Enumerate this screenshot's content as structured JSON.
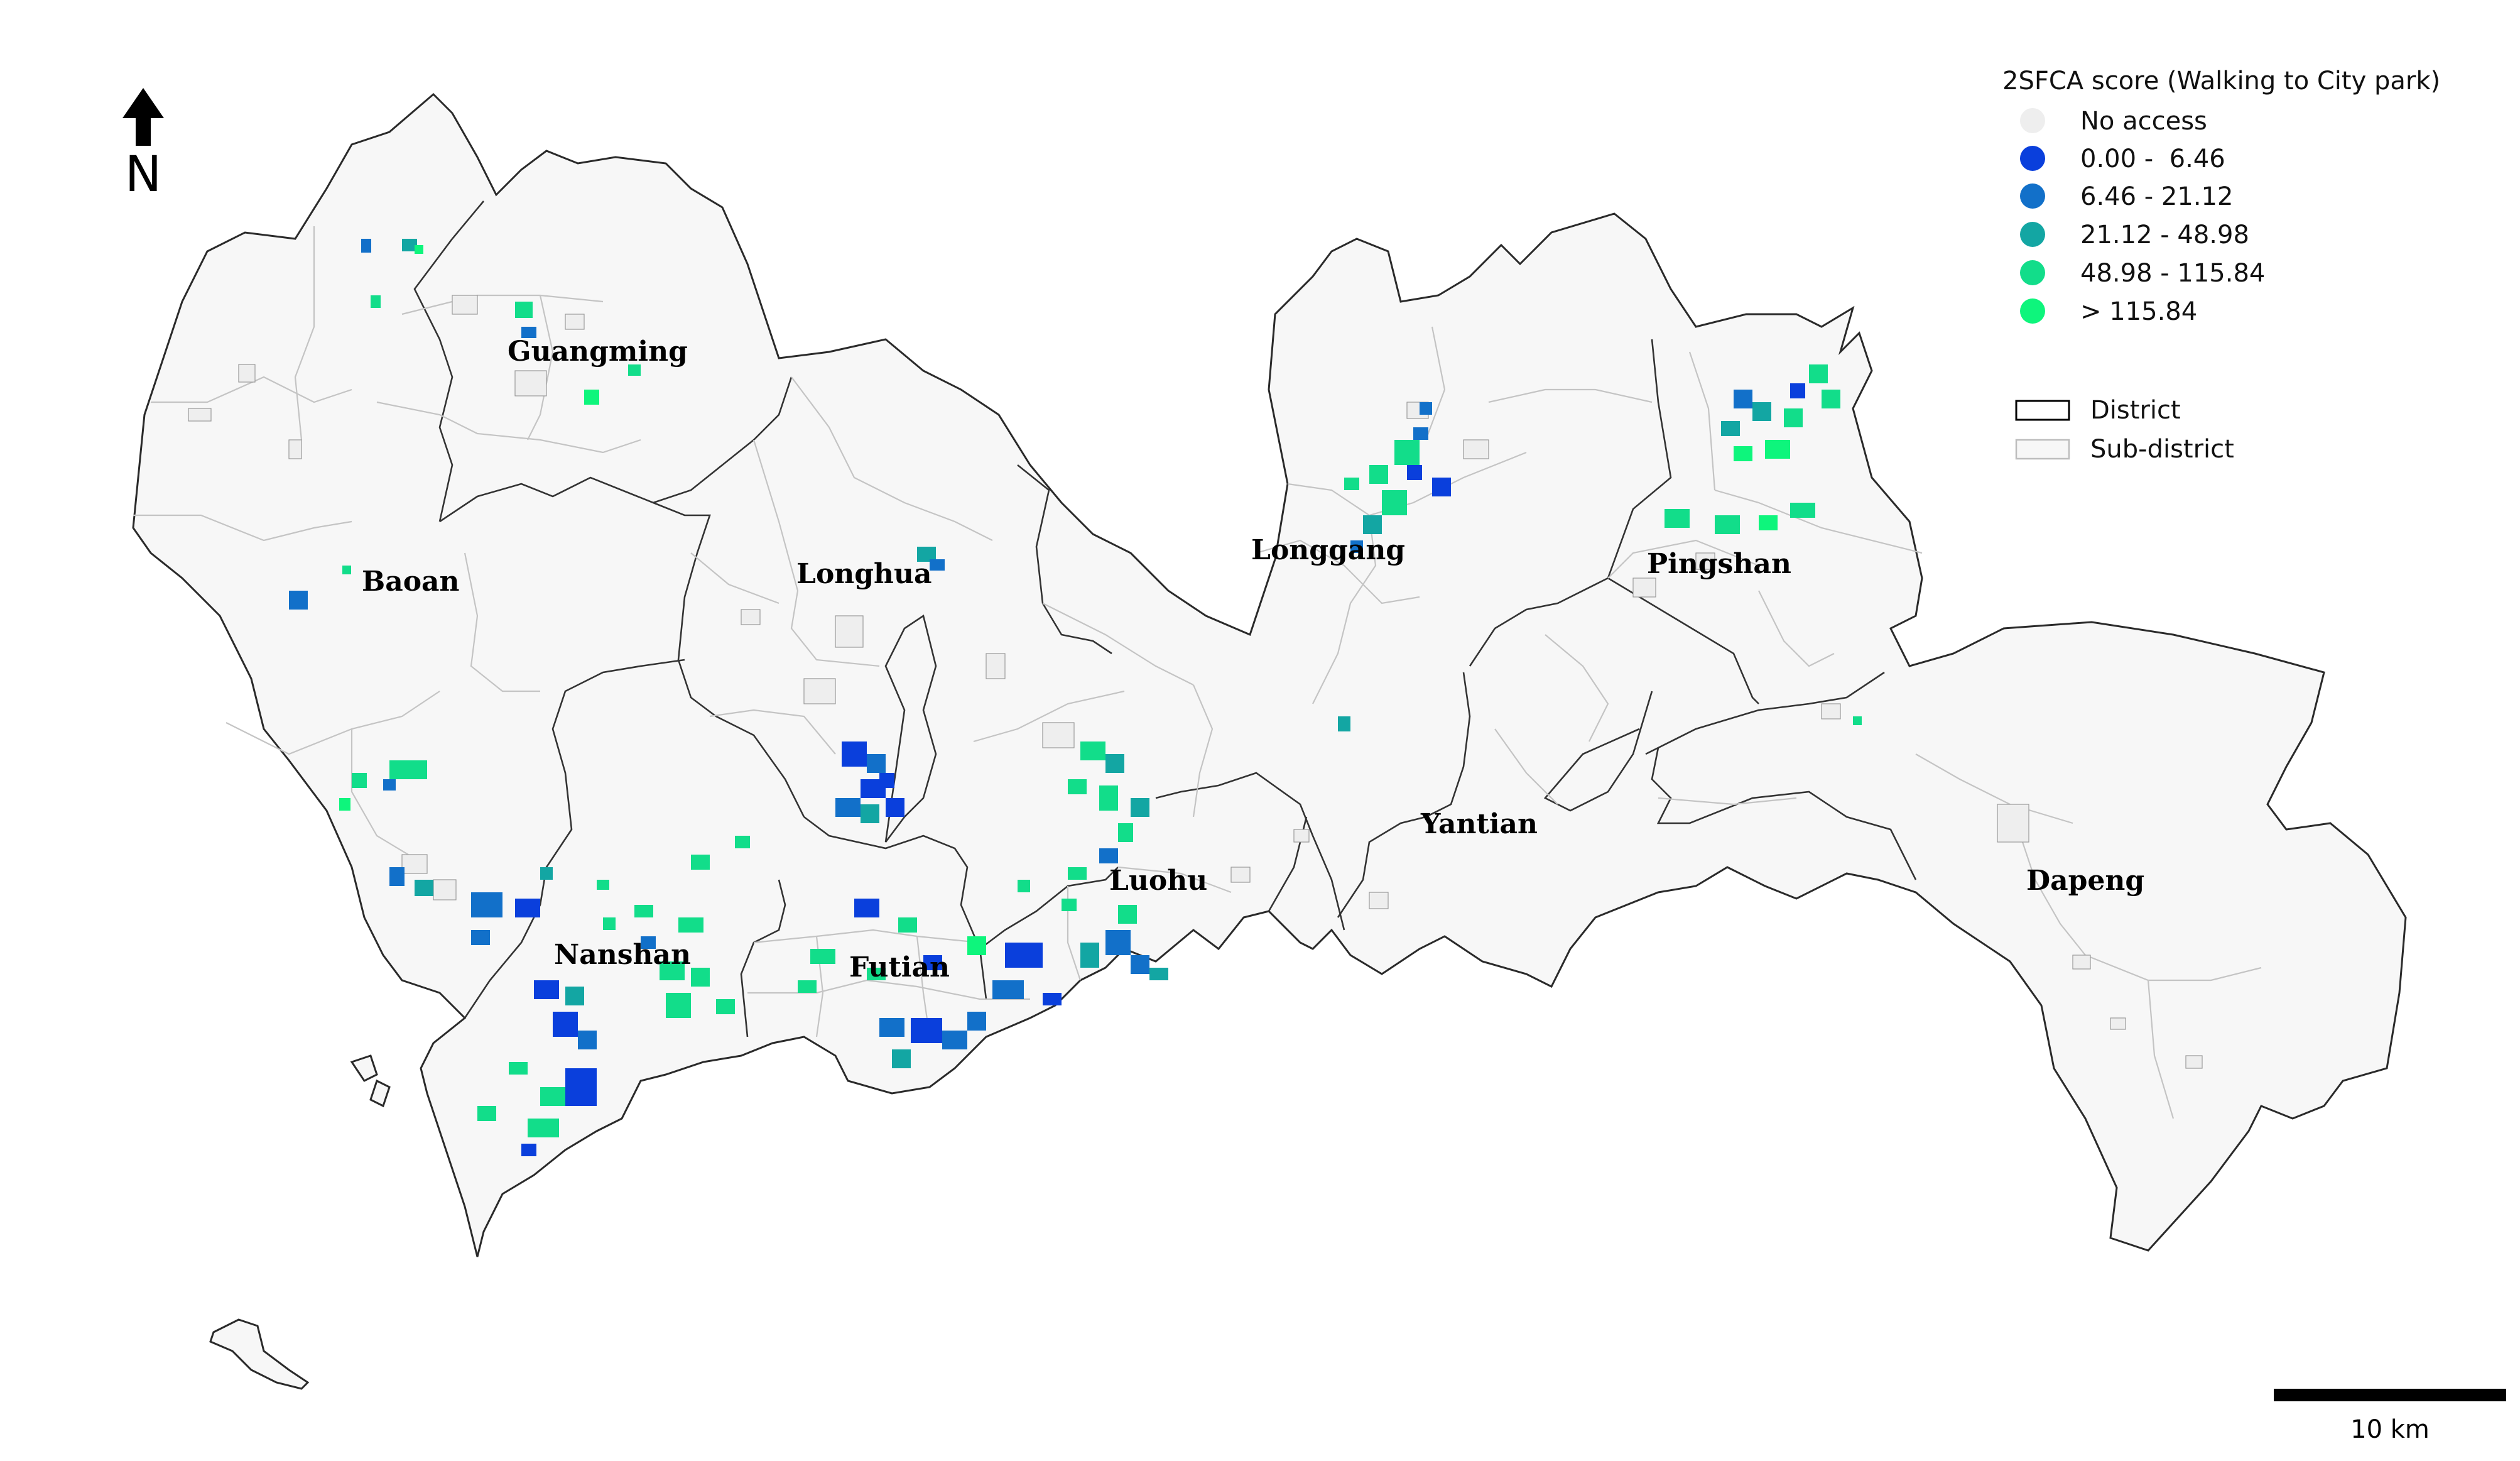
{
  "north_arrow": {
    "label": "N"
  },
  "legend": {
    "title": "2SFCA score (Walking to City park)",
    "classes": [
      {
        "label": "No access",
        "color": "#eeeeee"
      },
      {
        "label": "0.00 -  6.46",
        "color": "#0a3fdc"
      },
      {
        "label": "6.46 - 21.12",
        "color": "#1270c9"
      },
      {
        "label": "21.12 - 48.98",
        "color": "#13a6a3"
      },
      {
        "label": "48.98 - 115.84",
        "color": "#12dd8a"
      },
      {
        "label": "> 115.84",
        "color": "#0ef57c"
      }
    ],
    "boundaries": [
      {
        "label": "District",
        "stroke": "#000000"
      },
      {
        "label": "Sub-district",
        "stroke": "#bdbdbd"
      }
    ]
  },
  "districts": [
    "Guangming",
    "Baoan",
    "Longhua",
    "Longgang",
    "Pingshan",
    "Yantian",
    "Dapeng",
    "Luohu",
    "Futian",
    "Nanshan"
  ],
  "scale_bar": {
    "label": "10 km"
  }
}
